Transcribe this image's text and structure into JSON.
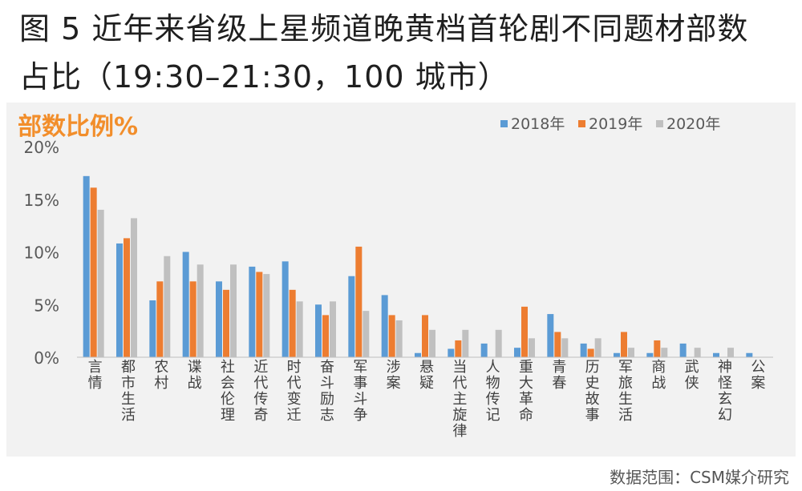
{
  "figure": {
    "title_line1": "图 5 近年来省级上星频道晚黄档首轮剧不同题材部数",
    "title_line2": "占比（19:30–21:30，100 城市）",
    "source": "数据范围：CSM媒介研究"
  },
  "colors": {
    "s2018": "#5b9bd5",
    "s2019": "#ed7d31",
    "s2020": "#c0c0c0",
    "ylabel": "#f28e2b",
    "panel": "#f2f2f2"
  },
  "chart_data": {
    "type": "bar",
    "ylabel": "部数比例%",
    "yticks": [
      "0%",
      "5%",
      "10%",
      "15%",
      "20%"
    ],
    "ylim": [
      0,
      20
    ],
    "legend_position": "top-right",
    "grid": false,
    "categories": [
      "言情",
      "都市生活",
      "农村",
      "谍战",
      "社会伦理",
      "近代传奇",
      "时代变迁",
      "奋斗励志",
      "军事斗争",
      "涉案",
      "悬疑",
      "当代主旋律",
      "人物传记",
      "重大革命",
      "青春",
      "历史故事",
      "军旅生活",
      "商战",
      "武侠",
      "神怪玄幻",
      "公案"
    ],
    "series": [
      {
        "name": "2018年",
        "values": [
          17.2,
          10.8,
          5.4,
          10.0,
          7.2,
          8.6,
          9.1,
          5.0,
          7.7,
          5.9,
          0.4,
          0.8,
          1.3,
          0.9,
          4.1,
          1.3,
          0.4,
          0.4,
          1.3,
          0.4,
          0.4
        ]
      },
      {
        "name": "2019年",
        "values": [
          16.1,
          11.3,
          7.2,
          7.2,
          6.4,
          8.1,
          6.4,
          4.0,
          10.5,
          4.0,
          4.0,
          1.6,
          0.0,
          4.8,
          2.4,
          0.8,
          2.4,
          1.6,
          0.0,
          0.0,
          0.0
        ]
      },
      {
        "name": "2020年",
        "values": [
          14.0,
          13.2,
          9.6,
          8.8,
          8.8,
          7.9,
          5.3,
          5.3,
          4.4,
          3.5,
          2.6,
          2.6,
          2.6,
          1.8,
          1.8,
          1.8,
          0.9,
          0.9,
          0.9,
          0.9,
          0.0
        ]
      }
    ]
  }
}
